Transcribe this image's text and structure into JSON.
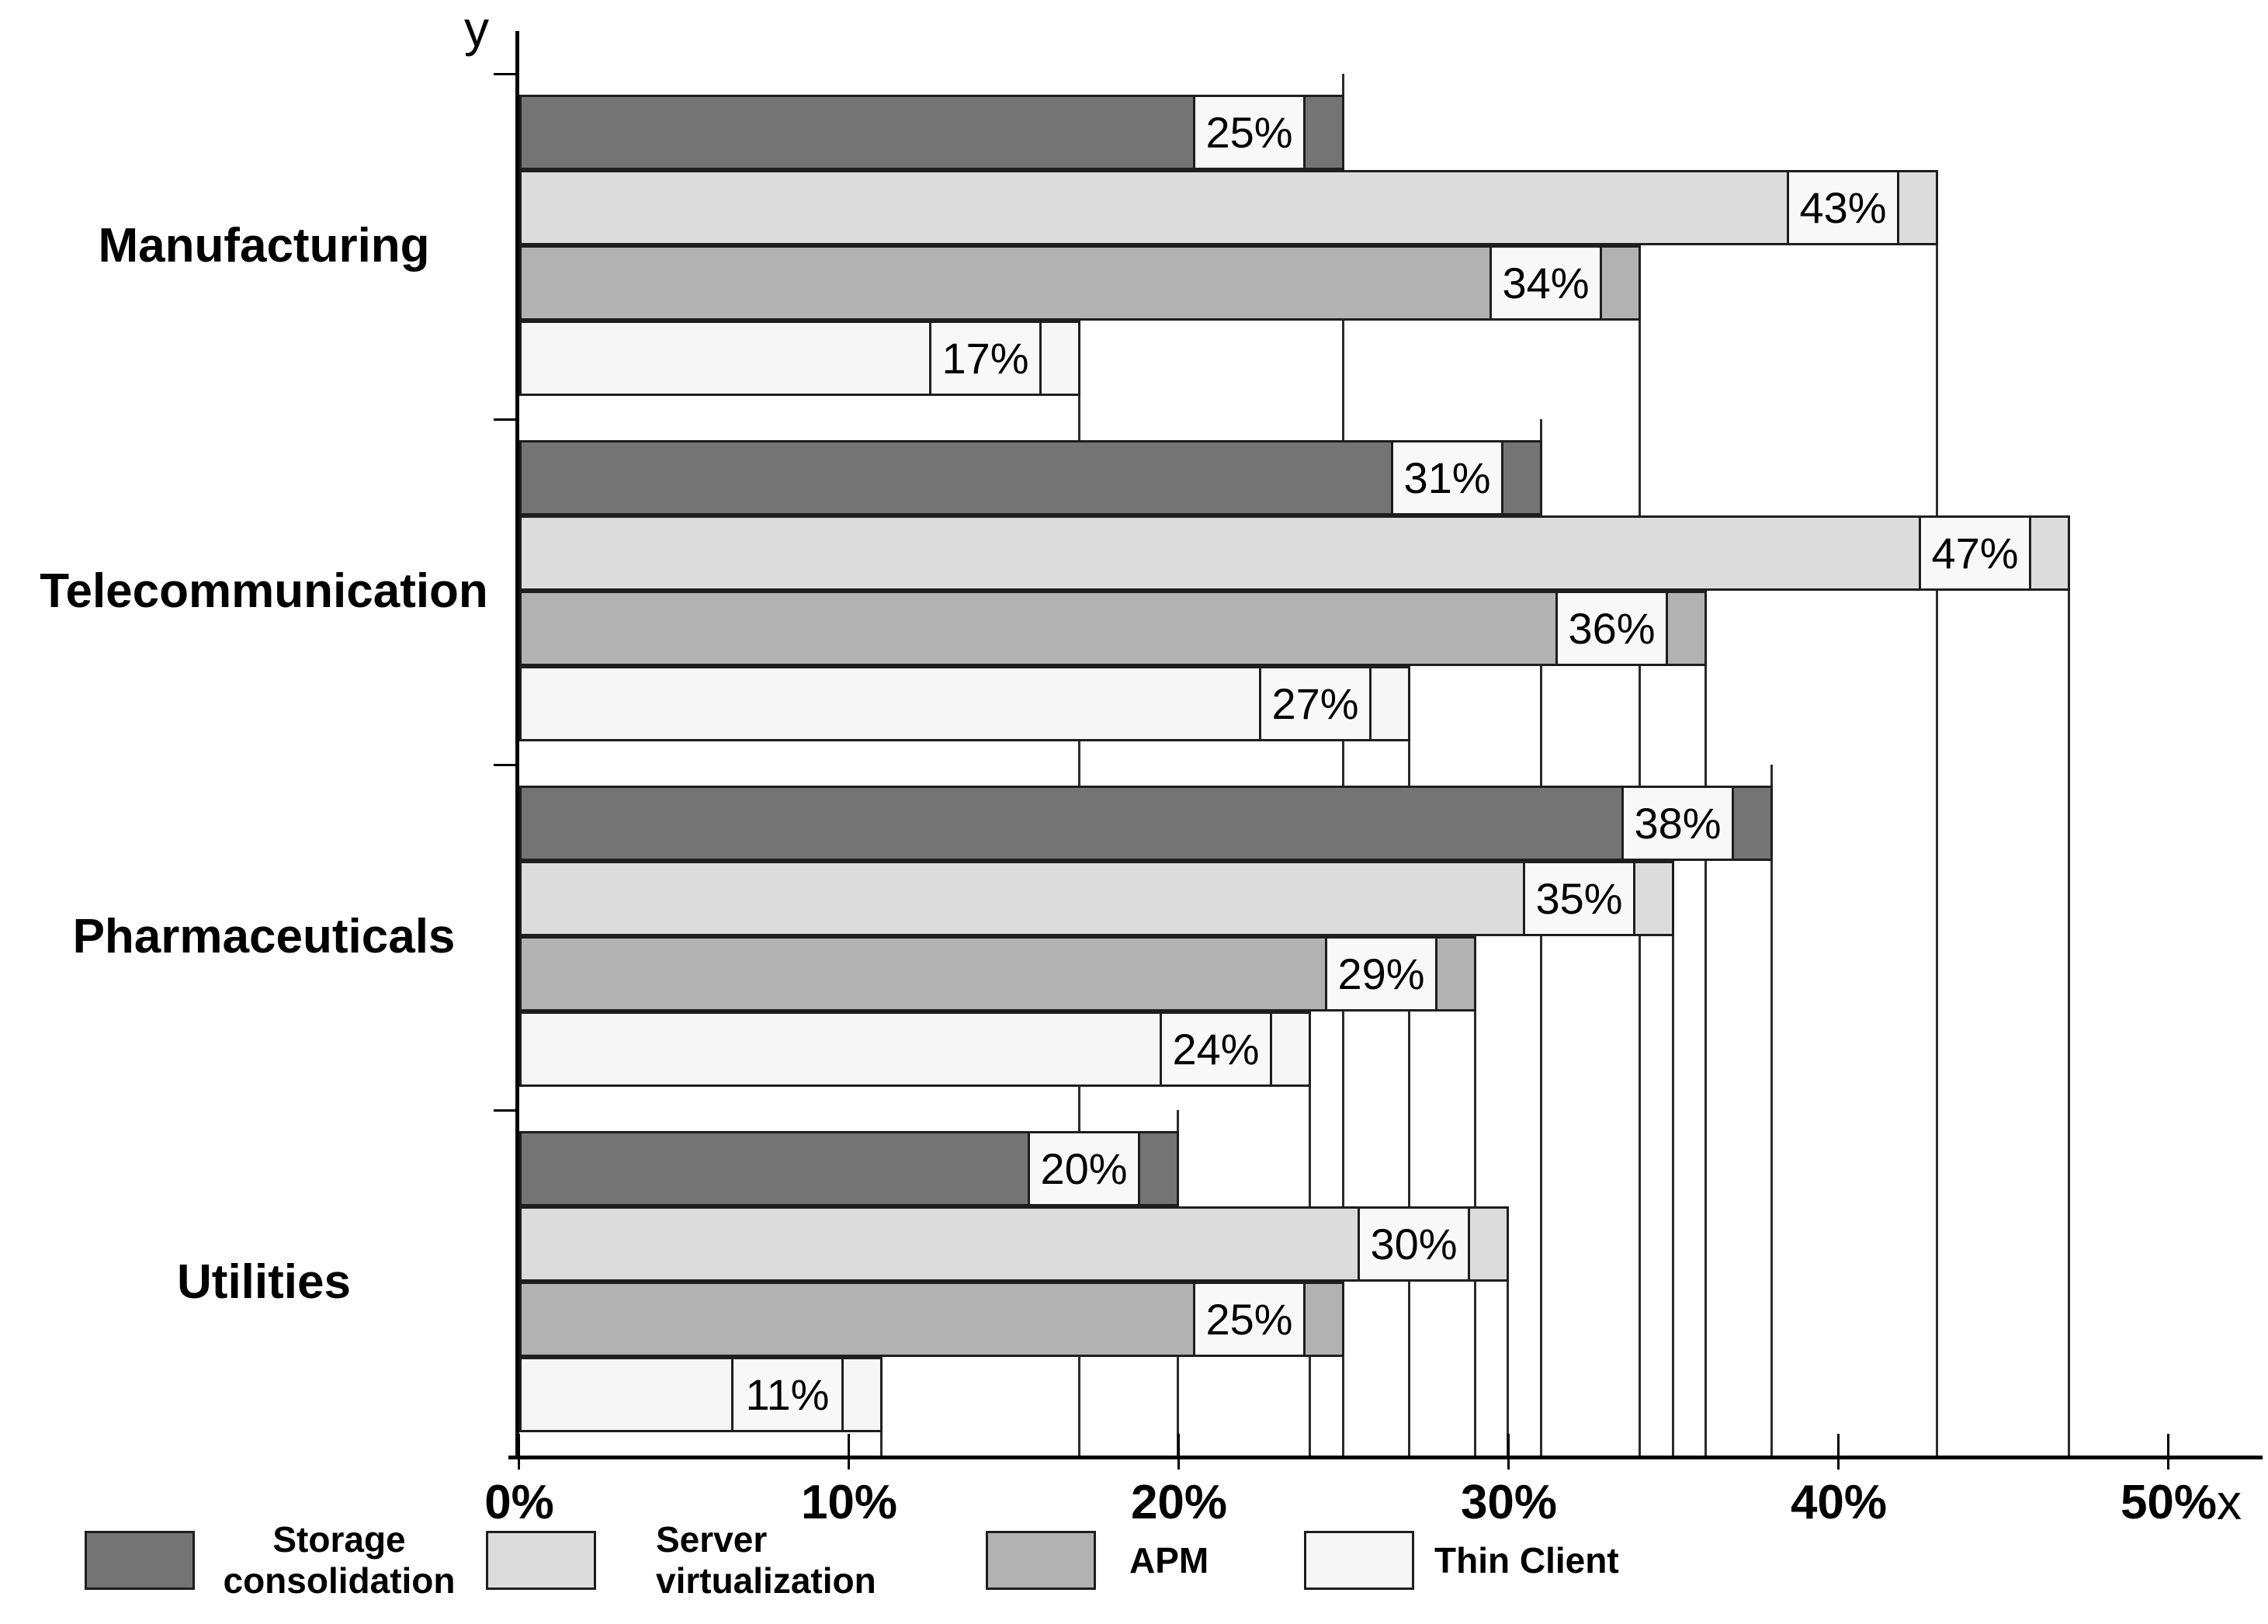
{
  "axes": {
    "x_label": "x",
    "y_label": "y",
    "x_tick_labels": [
      "0%",
      "10%",
      "20%",
      "30%",
      "40%",
      "50%"
    ],
    "x_tick_values": [
      0,
      10,
      20,
      30,
      40,
      50
    ]
  },
  "legend": {
    "items": [
      {
        "label": "Storage consolidation",
        "color": "#747474"
      },
      {
        "label": "Server virtualization",
        "color": "#dcdcdc"
      },
      {
        "label": "APM",
        "color": "#b2b2b2"
      },
      {
        "label": "Thin Client",
        "color": "#f6f6f6"
      }
    ]
  },
  "chart_data": {
    "type": "bar",
    "orientation": "horizontal",
    "title": "",
    "categories": [
      "Manufacturing",
      "Telecommunication",
      "Pharmaceuticals",
      "Utilities"
    ],
    "series": [
      {
        "name": "Storage consolidation",
        "color": "#747474",
        "values": [
          25,
          31,
          38,
          20
        ]
      },
      {
        "name": "Server virtualization",
        "color": "#dcdcdc",
        "values": [
          43,
          47,
          35,
          30
        ]
      },
      {
        "name": "APM",
        "color": "#b2b2b2",
        "values": [
          34,
          36,
          29,
          25
        ]
      },
      {
        "name": "Thin Client",
        "color": "#f6f6f6",
        "values": [
          17,
          27,
          24,
          11
        ]
      }
    ],
    "value_label_suffix": "%",
    "xlim": [
      0,
      52
    ],
    "grid": false,
    "legend_position": "bottom",
    "bar_border_color": "#1e1e1e",
    "value_box_color": "#f8f8f8",
    "dropline_color": "#2b2b2b"
  }
}
